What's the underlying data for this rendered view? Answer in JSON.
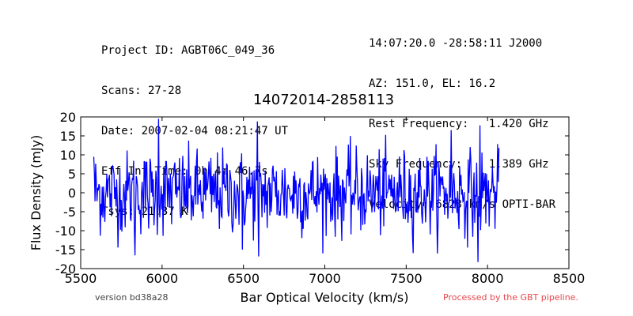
{
  "header": {
    "left": [
      "Project ID: AGBT06C_049_36",
      "Scans: 27-28",
      "Date: 2007-02-04 08:21:47 UT",
      "Eff Int Time: 0h 4m 46.7s",
      "Tsys: 21.37 K"
    ],
    "right": [
      "14:07:20.0 -28:58:11 J2000",
      "AZ: 151.0, EL: 16.2",
      "Rest Frequency:   1.420 GHz",
      "Sky Frequency:    1.389 GHz",
      "Velocity: 6823 km/s OPTI-BAR"
    ]
  },
  "footer": {
    "version": "version bd38a28",
    "pipeline": "Processed by the GBT pipeline."
  },
  "chart_data": {
    "type": "line",
    "title": "14072014-2858113",
    "xlabel": "Bar Optical Velocity (km/s)",
    "ylabel": "Flux Density (mJy)",
    "xlim": [
      5500,
      8500
    ],
    "ylim": [
      -20,
      20
    ],
    "xticks": [
      5500,
      6000,
      6500,
      7000,
      7500,
      8000,
      8500
    ],
    "yticks": [
      -20,
      -15,
      -10,
      -5,
      0,
      5,
      10,
      15,
      20
    ],
    "grid": false,
    "series_color": "#0000ff",
    "x_start": 5580,
    "x_end": 8070,
    "noise_sigma_mjy": 5.5,
    "spike_values": [
      {
        "x": 5980,
        "y": 19.5
      },
      {
        "x": 6585,
        "y": 18.8
      },
      {
        "x": 7775,
        "y": 16.5
      },
      {
        "x": 7955,
        "y": 17.8
      },
      {
        "x": 5835,
        "y": -16.5
      },
      {
        "x": 6595,
        "y": -16.8
      },
      {
        "x": 7940,
        "y": -18.3
      },
      {
        "x": 6495,
        "y": -15.0
      }
    ]
  }
}
